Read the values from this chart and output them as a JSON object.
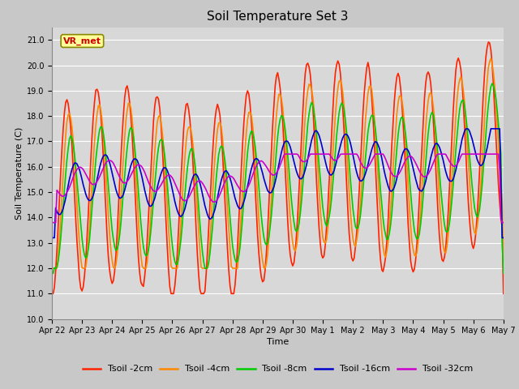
{
  "title": "Soil Temperature Set 3",
  "xlabel": "Time",
  "ylabel": "Soil Temperature (C)",
  "ylim": [
    10.0,
    21.5
  ],
  "yticks": [
    10.0,
    11.0,
    12.0,
    13.0,
    14.0,
    15.0,
    16.0,
    17.0,
    18.0,
    19.0,
    20.0,
    21.0
  ],
  "fig_bg_color": "#c8c8c8",
  "plot_bg_color": "#d8d8d8",
  "grid_color": "#ffffff",
  "annotation_text": "VR_met",
  "annotation_box_facecolor": "#ffff99",
  "annotation_text_color": "#cc0000",
  "annotation_box_edgecolor": "#888800",
  "line_colors": [
    "#ff2200",
    "#ff8800",
    "#00cc00",
    "#0000cc",
    "#cc00cc"
  ],
  "line_labels": [
    "Tsoil -2cm",
    "Tsoil -4cm",
    "Tsoil -8cm",
    "Tsoil -16cm",
    "Tsoil -32cm"
  ],
  "line_width": 1.2,
  "x_tick_labels": [
    "Apr 22",
    "Apr 23",
    "Apr 24",
    "Apr 25",
    "Apr 26",
    "Apr 27",
    "Apr 28",
    "Apr 29",
    "Apr 30",
    "May 1",
    "May 2",
    "May 3",
    "May 4",
    "May 5",
    "May 6",
    "May 7"
  ],
  "n_points": 361,
  "title_fontsize": 11,
  "axis_label_fontsize": 8,
  "tick_fontsize": 7,
  "legend_fontsize": 8
}
